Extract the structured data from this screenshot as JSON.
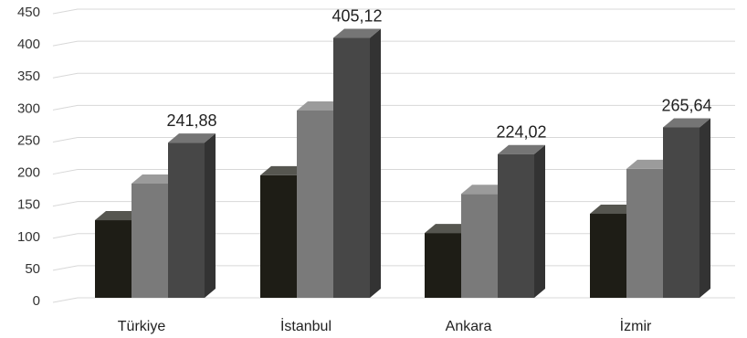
{
  "chart_data": {
    "type": "bar",
    "categories": [
      "Türkiye",
      "İstanbul",
      "Ankara",
      "İzmir"
    ],
    "series": [
      {
        "values": [
          121,
          191,
          101,
          131
        ],
        "color": "#1e1d16"
      },
      {
        "values": [
          178,
          292,
          162,
          201
        ],
        "color": "#7a7a7a"
      },
      {
        "values": [
          241.88,
          405.12,
          224.02,
          265.64
        ],
        "color": "#474747"
      }
    ],
    "data_labels": [
      "241,88",
      "405,12",
      "224,02",
      "265,64"
    ],
    "yticks": [
      "0",
      "50",
      "100",
      "150",
      "200",
      "250",
      "300",
      "350",
      "400",
      "450"
    ],
    "ylim": [
      0,
      450
    ],
    "grid": true,
    "legend": "none",
    "style": "3d-clustered-column",
    "title": "",
    "xlabel": "",
    "ylabel": ""
  }
}
